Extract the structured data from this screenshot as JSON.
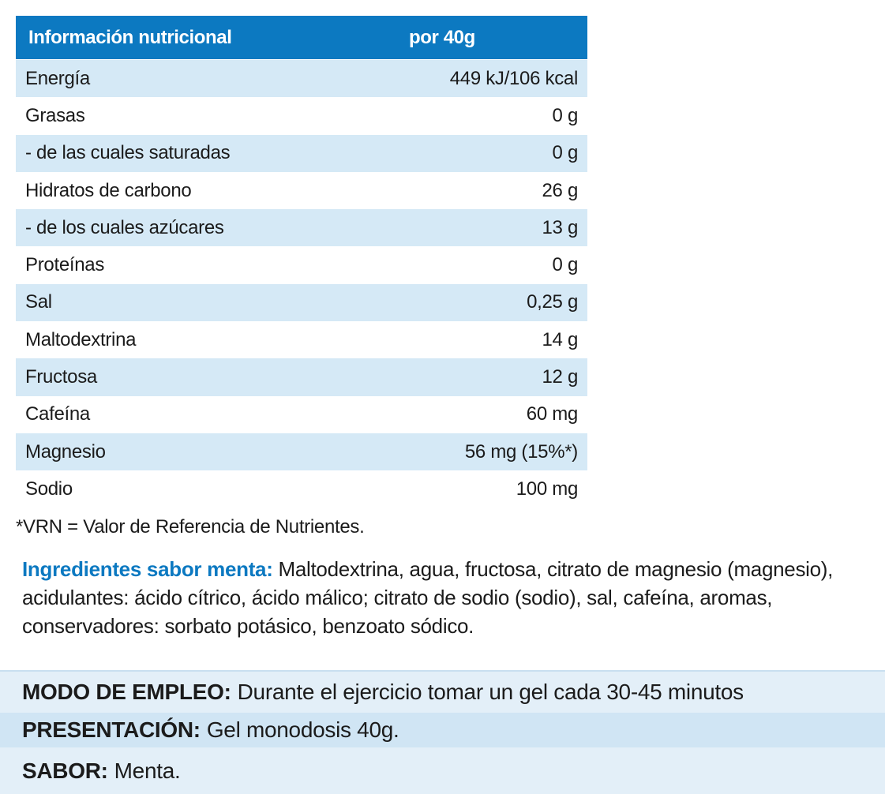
{
  "nutrition_table": {
    "header": {
      "label": "Información nutricional",
      "value": "por 40g"
    },
    "rows": [
      {
        "name": "Energía",
        "value": "449 kJ/106 kcal"
      },
      {
        "name": "Grasas",
        "value": "0 g"
      },
      {
        "name": "- de las cuales saturadas",
        "value": "0 g"
      },
      {
        "name": "Hidratos de carbono",
        "value": "26 g"
      },
      {
        "name": "- de los cuales azúcares",
        "value": "13 g"
      },
      {
        "name": "Proteínas",
        "value": "0 g"
      },
      {
        "name": "Sal",
        "value": "0,25 g"
      },
      {
        "name": "Maltodextrina",
        "value": "14 g"
      },
      {
        "name": "Fructosa",
        "value": "12 g"
      },
      {
        "name": "Cafeína",
        "value": "60 mg"
      },
      {
        "name": "Magnesio",
        "value": "56 mg (15%*)"
      },
      {
        "name": "Sodio",
        "value": "100 mg"
      }
    ]
  },
  "footnote": "*VRN = Valor de Referencia de Nutrientes.",
  "ingredients": {
    "label": "Ingredientes sabor menta:",
    "text": "Maltodextrina, agua, fructosa, citrato de magnesio (magnesio), acidulantes: ácido cítrico, ácido málico; citrato de sodio (sodio), sal, cafeína, aromas, conservadores: sorbato potásico, benzoato sódico."
  },
  "usage": {
    "label": "MODO DE EMPLEO:",
    "text": "Durante el ejercicio tomar un gel cada 30-45 minutos"
  },
  "presentation": {
    "label": "PRESENTACIÓN:",
    "text": "Gel monodosis 40g."
  },
  "flavor": {
    "label": "SABOR:",
    "text": "Menta."
  },
  "colors": {
    "header_blue": "#0c79c1",
    "row_stripe": "#d5e9f6",
    "ingredients_label": "#0c79c1"
  }
}
